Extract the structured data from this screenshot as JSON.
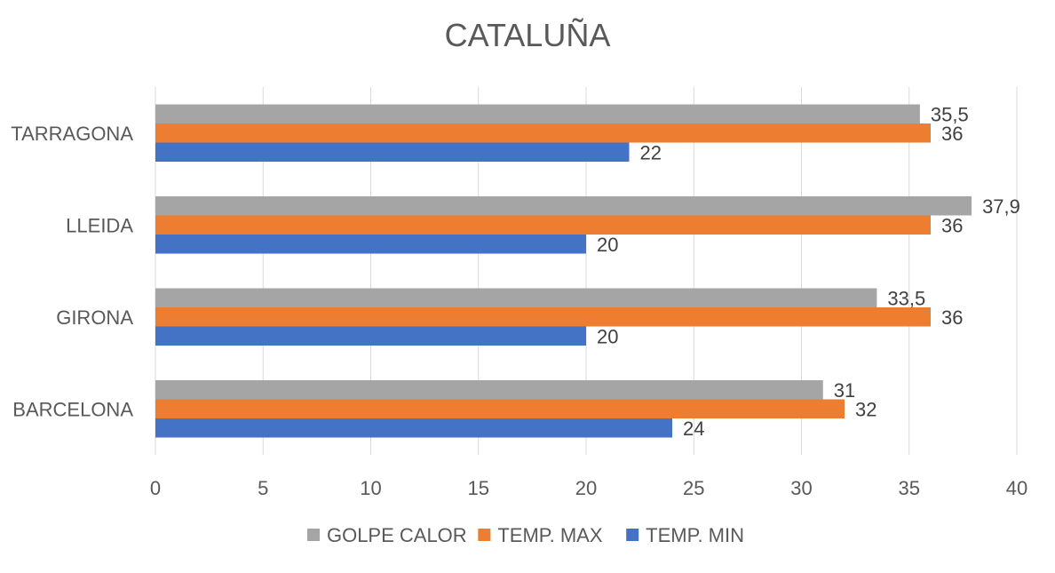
{
  "chart_data": {
    "type": "bar",
    "orientation": "horizontal",
    "title": "CATALUÑA",
    "xlabel": "",
    "ylabel": "",
    "categories": [
      "BARCELONA",
      "GIRONA",
      "LLEIDA",
      "TARRAGONA"
    ],
    "series": [
      {
        "name": "GOLPE CALOR",
        "color": "#a5a5a5",
        "values": [
          31,
          33.5,
          37.9,
          35.5
        ],
        "labels": [
          "31",
          "33,5",
          "37,9",
          "35,5"
        ]
      },
      {
        "name": "TEMP. MAX",
        "color": "#ed7d31",
        "values": [
          32,
          36,
          36,
          36
        ],
        "labels": [
          "32",
          "36",
          "36",
          "36"
        ]
      },
      {
        "name": "TEMP. MIN",
        "color": "#4472c4",
        "values": [
          24,
          20,
          20,
          22
        ],
        "labels": [
          "24",
          "20",
          "20",
          "22"
        ]
      }
    ],
    "xlim": [
      0,
      40
    ],
    "x_ticks": [
      "0",
      "5",
      "10",
      "15",
      "20",
      "25",
      "30",
      "35",
      "40"
    ],
    "grid": "vertical",
    "legend": "bottom"
  }
}
